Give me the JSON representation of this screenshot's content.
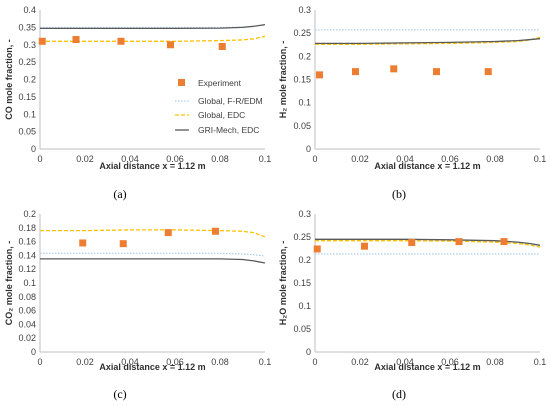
{
  "colors": {
    "experiment": "#ED7D31",
    "global_fr_edm": "#9DC3E6",
    "global_edc": "#FFC000",
    "gri_mech_edc": "#595959",
    "axis": "#bfbfbf"
  },
  "legend": {
    "experiment": "Experiment",
    "global_fr_edm": "Global, F-R/EDM",
    "global_edc": "Global, EDC",
    "gri_mech_edc": "GRI-Mech, EDC"
  },
  "chart_data": [
    {
      "type": "line",
      "caption": "(a)",
      "xlabel": "Axial distance x = 1.12 m",
      "ylabel": "CO mole fraction, -",
      "xlim": [
        0,
        0.1
      ],
      "ylim": [
        0,
        0.4
      ],
      "xticks": [
        "0",
        "0.02",
        "0.04",
        "0.06",
        "0.08",
        "0.1"
      ],
      "yticks": [
        "0",
        "0.05",
        "0.1",
        "0.15",
        "0.2",
        "0.25",
        "0.3",
        "0.35",
        "0.4"
      ],
      "legend_position": "center-right",
      "series": [
        {
          "name": "Experiment",
          "kind": "scatter",
          "x": [
            0.001,
            0.016,
            0.036,
            0.058,
            0.081
          ],
          "y": [
            0.31,
            0.315,
            0.31,
            0.3,
            0.295
          ]
        },
        {
          "name": "Global, F-R/EDM",
          "kind": "line",
          "x": [
            0,
            0.02,
            0.04,
            0.06,
            0.08,
            0.09,
            0.095,
            0.1
          ],
          "y": [
            0.35,
            0.35,
            0.35,
            0.35,
            0.35,
            0.351,
            0.353,
            0.356
          ]
        },
        {
          "name": "Global, EDC",
          "kind": "line",
          "x": [
            0,
            0.02,
            0.04,
            0.06,
            0.08,
            0.09,
            0.095,
            0.1
          ],
          "y": [
            0.31,
            0.31,
            0.31,
            0.31,
            0.312,
            0.314,
            0.317,
            0.324
          ]
        },
        {
          "name": "GRI-Mech, EDC",
          "kind": "line",
          "x": [
            0,
            0.02,
            0.04,
            0.06,
            0.08,
            0.09,
            0.095,
            0.1
          ],
          "y": [
            0.347,
            0.347,
            0.347,
            0.347,
            0.348,
            0.35,
            0.353,
            0.358
          ]
        }
      ]
    },
    {
      "type": "line",
      "caption": "(b)",
      "xlabel": "Axial distance x = 1.12 m",
      "ylabel": "H₂ mole fraction, -",
      "xlim": [
        0,
        0.1
      ],
      "ylim": [
        0,
        0.3
      ],
      "xticks": [
        "0",
        "0.02",
        "0.04",
        "0.06",
        "0.08",
        "0.1"
      ],
      "yticks": [
        "0",
        "0.05",
        "0.1",
        "0.15",
        "0.2",
        "0.25",
        "0.3"
      ],
      "series": [
        {
          "name": "Experiment",
          "kind": "scatter",
          "x": [
            0.002,
            0.018,
            0.035,
            0.054,
            0.077
          ],
          "y": [
            0.16,
            0.167,
            0.173,
            0.167,
            0.167
          ]
        },
        {
          "name": "Global, F-R/EDM",
          "kind": "line",
          "x": [
            0,
            0.02,
            0.04,
            0.06,
            0.08,
            0.1
          ],
          "y": [
            0.257,
            0.257,
            0.257,
            0.257,
            0.257,
            0.257
          ]
        },
        {
          "name": "Global, EDC",
          "kind": "line",
          "x": [
            0,
            0.02,
            0.04,
            0.06,
            0.08,
            0.09,
            0.095,
            0.1
          ],
          "y": [
            0.226,
            0.226,
            0.227,
            0.228,
            0.23,
            0.232,
            0.235,
            0.241
          ]
        },
        {
          "name": "GRI-Mech, EDC",
          "kind": "line",
          "x": [
            0,
            0.02,
            0.04,
            0.06,
            0.08,
            0.09,
            0.095,
            0.1
          ],
          "y": [
            0.228,
            0.228,
            0.229,
            0.23,
            0.232,
            0.234,
            0.236,
            0.238
          ]
        }
      ]
    },
    {
      "type": "line",
      "caption": "(c)",
      "xlabel": "Axial distance x = 1.12 m",
      "ylabel": "CO₂ mole fraction, -",
      "xlim": [
        0,
        0.1
      ],
      "ylim": [
        0,
        0.2
      ],
      "xticks": [
        "0",
        "0.02",
        "0.04",
        "0.06",
        "0.08",
        "0.1"
      ],
      "yticks": [
        "0",
        "0.02",
        "0.04",
        "0.06",
        "0.08",
        "0.1",
        "0.12",
        "0.14",
        "0.16",
        "0.18",
        "0.2"
      ],
      "series": [
        {
          "name": "Experiment",
          "kind": "scatter",
          "x": [
            0.019,
            0.037,
            0.057,
            0.078
          ],
          "y": [
            0.158,
            0.157,
            0.173,
            0.175
          ]
        },
        {
          "name": "Global, F-R/EDM",
          "kind": "line",
          "x": [
            0,
            0.02,
            0.04,
            0.06,
            0.08,
            0.09,
            0.095,
            0.1
          ],
          "y": [
            0.143,
            0.143,
            0.143,
            0.143,
            0.143,
            0.142,
            0.141,
            0.139
          ]
        },
        {
          "name": "Global, EDC",
          "kind": "line",
          "x": [
            0,
            0.02,
            0.04,
            0.06,
            0.08,
            0.09,
            0.095,
            0.1
          ],
          "y": [
            0.176,
            0.176,
            0.177,
            0.177,
            0.176,
            0.175,
            0.173,
            0.167
          ]
        },
        {
          "name": "GRI-Mech, EDC",
          "kind": "line",
          "x": [
            0,
            0.02,
            0.04,
            0.06,
            0.08,
            0.09,
            0.095,
            0.1
          ],
          "y": [
            0.135,
            0.135,
            0.135,
            0.135,
            0.135,
            0.134,
            0.132,
            0.129
          ]
        }
      ]
    },
    {
      "type": "line",
      "caption": "(d)",
      "xlabel": "Axial distance x = 1.12 m",
      "ylabel": "H₂O mole fraction, -",
      "xlim": [
        0,
        0.1
      ],
      "ylim": [
        0,
        0.3
      ],
      "xticks": [
        "0",
        "0.02",
        "0.04",
        "0.06",
        "0.08",
        "0.1"
      ],
      "yticks": [
        "0",
        "0.05",
        "0.1",
        "0.15",
        "0.2",
        "0.25",
        "0.3"
      ],
      "series": [
        {
          "name": "Experiment",
          "kind": "scatter",
          "x": [
            0.001,
            0.022,
            0.043,
            0.064,
            0.084
          ],
          "y": [
            0.224,
            0.23,
            0.238,
            0.24,
            0.24
          ]
        },
        {
          "name": "Global, F-R/EDM",
          "kind": "line",
          "x": [
            0,
            0.02,
            0.04,
            0.06,
            0.08,
            0.1
          ],
          "y": [
            0.213,
            0.213,
            0.213,
            0.213,
            0.213,
            0.213
          ]
        },
        {
          "name": "Global, EDC",
          "kind": "line",
          "x": [
            0,
            0.02,
            0.04,
            0.06,
            0.08,
            0.09,
            0.095,
            0.1
          ],
          "y": [
            0.242,
            0.242,
            0.242,
            0.241,
            0.239,
            0.236,
            0.233,
            0.228
          ]
        },
        {
          "name": "GRI-Mech, EDC",
          "kind": "line",
          "x": [
            0,
            0.02,
            0.04,
            0.06,
            0.08,
            0.09,
            0.095,
            0.1
          ],
          "y": [
            0.245,
            0.245,
            0.245,
            0.244,
            0.242,
            0.239,
            0.236,
            0.232
          ]
        }
      ]
    }
  ]
}
